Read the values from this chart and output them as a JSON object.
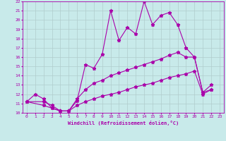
{
  "xlabel": "Windchill (Refroidissement éolien,°C)",
  "xlim": [
    -0.5,
    23.5
  ],
  "ylim": [
    10,
    22
  ],
  "xticks": [
    0,
    1,
    2,
    3,
    4,
    5,
    6,
    7,
    8,
    9,
    10,
    11,
    12,
    13,
    14,
    15,
    16,
    17,
    18,
    19,
    20,
    21,
    22,
    23
  ],
  "yticks": [
    10,
    11,
    12,
    13,
    14,
    15,
    16,
    17,
    18,
    19,
    20,
    21,
    22
  ],
  "bg_color": "#c8eaea",
  "line_color": "#aa00aa",
  "grid_color": "#b0cccc",
  "series1_x": [
    0,
    1,
    2,
    3,
    4,
    5,
    6,
    7,
    8,
    9,
    10,
    11,
    12,
    13,
    14,
    15,
    16,
    17,
    18,
    19,
    20,
    21,
    22
  ],
  "series1_y": [
    11.2,
    12.0,
    11.5,
    10.5,
    10.2,
    10.2,
    11.3,
    15.2,
    14.8,
    16.3,
    21.0,
    17.8,
    19.2,
    18.5,
    22.0,
    19.5,
    20.5,
    20.8,
    19.5,
    17.0,
    16.0,
    12.2,
    12.5
  ],
  "series2_x": [
    0,
    2,
    3,
    4,
    5,
    6,
    7,
    8,
    9,
    10,
    11,
    12,
    13,
    14,
    15,
    16,
    17,
    18,
    19,
    20,
    21,
    22
  ],
  "series2_y": [
    11.2,
    11.2,
    10.8,
    10.2,
    10.2,
    11.5,
    12.5,
    13.2,
    13.5,
    14.0,
    14.3,
    14.6,
    14.9,
    15.2,
    15.5,
    15.8,
    16.2,
    16.5,
    16.0,
    16.0,
    12.2,
    13.0
  ],
  "series3_x": [
    0,
    2,
    3,
    4,
    5,
    6,
    7,
    8,
    9,
    10,
    11,
    12,
    13,
    14,
    15,
    16,
    17,
    18,
    19,
    20,
    21,
    22
  ],
  "series3_y": [
    11.2,
    10.8,
    10.5,
    10.2,
    10.2,
    10.8,
    11.2,
    11.5,
    11.8,
    12.0,
    12.2,
    12.5,
    12.8,
    13.0,
    13.2,
    13.5,
    13.8,
    14.0,
    14.2,
    14.5,
    12.0,
    12.5
  ]
}
